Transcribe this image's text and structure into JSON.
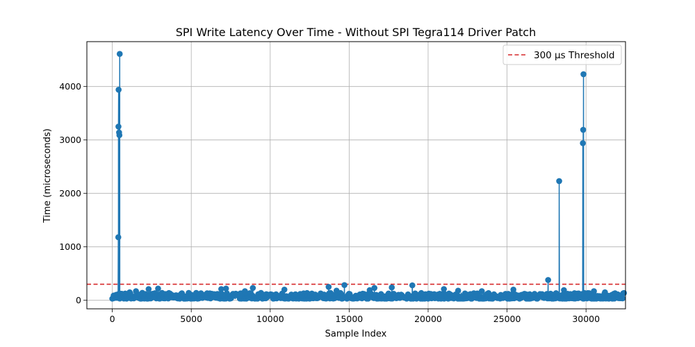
{
  "chart_data": {
    "type": "line",
    "title": "SPI Write Latency Over Time - Without SPI Tegra114 Driver Patch",
    "xlabel": "Sample Index",
    "ylabel": "Time (microseconds)",
    "xlim": [
      -1610,
      32500
    ],
    "ylim": [
      -160,
      4840
    ],
    "xticks": [
      0,
      5000,
      10000,
      15000,
      20000,
      25000,
      30000
    ],
    "yticks": [
      0,
      1000,
      2000,
      3000,
      4000
    ],
    "grid": true,
    "legend_position": "top-right",
    "colors": {
      "series": "#1f77b4",
      "threshold": "#d62728",
      "grid": "#b0b0b0"
    },
    "threshold": {
      "name": "300 µs Threshold",
      "value": 300,
      "style": "dashed"
    },
    "series": [
      {
        "marker": "circle",
        "baseline": {
          "x_start": 0,
          "x_end": 32400,
          "min": 30,
          "max": 140
        },
        "spikes": [
          {
            "x": 380,
            "y": 1180
          },
          {
            "x": 390,
            "y": 3250
          },
          {
            "x": 400,
            "y": 3940
          },
          {
            "x": 430,
            "y": 3140
          },
          {
            "x": 450,
            "y": 3090
          },
          {
            "x": 470,
            "y": 4610
          },
          {
            "x": 1100,
            "y": 150
          },
          {
            "x": 1500,
            "y": 170
          },
          {
            "x": 2300,
            "y": 210
          },
          {
            "x": 2900,
            "y": 220
          },
          {
            "x": 6900,
            "y": 210
          },
          {
            "x": 7200,
            "y": 220
          },
          {
            "x": 8400,
            "y": 170
          },
          {
            "x": 8900,
            "y": 230
          },
          {
            "x": 10900,
            "y": 200
          },
          {
            "x": 13700,
            "y": 250
          },
          {
            "x": 14200,
            "y": 180
          },
          {
            "x": 14700,
            "y": 285
          },
          {
            "x": 16300,
            "y": 190
          },
          {
            "x": 16600,
            "y": 230
          },
          {
            "x": 17700,
            "y": 240
          },
          {
            "x": 19000,
            "y": 280
          },
          {
            "x": 21000,
            "y": 210
          },
          {
            "x": 21900,
            "y": 180
          },
          {
            "x": 23400,
            "y": 170
          },
          {
            "x": 25400,
            "y": 200
          },
          {
            "x": 27600,
            "y": 380
          },
          {
            "x": 28300,
            "y": 2230
          },
          {
            "x": 28600,
            "y": 190
          },
          {
            "x": 29800,
            "y": 2940
          },
          {
            "x": 29820,
            "y": 3190
          },
          {
            "x": 29840,
            "y": 4230
          },
          {
            "x": 30500,
            "y": 170
          },
          {
            "x": 31200,
            "y": 150
          }
        ]
      }
    ]
  }
}
